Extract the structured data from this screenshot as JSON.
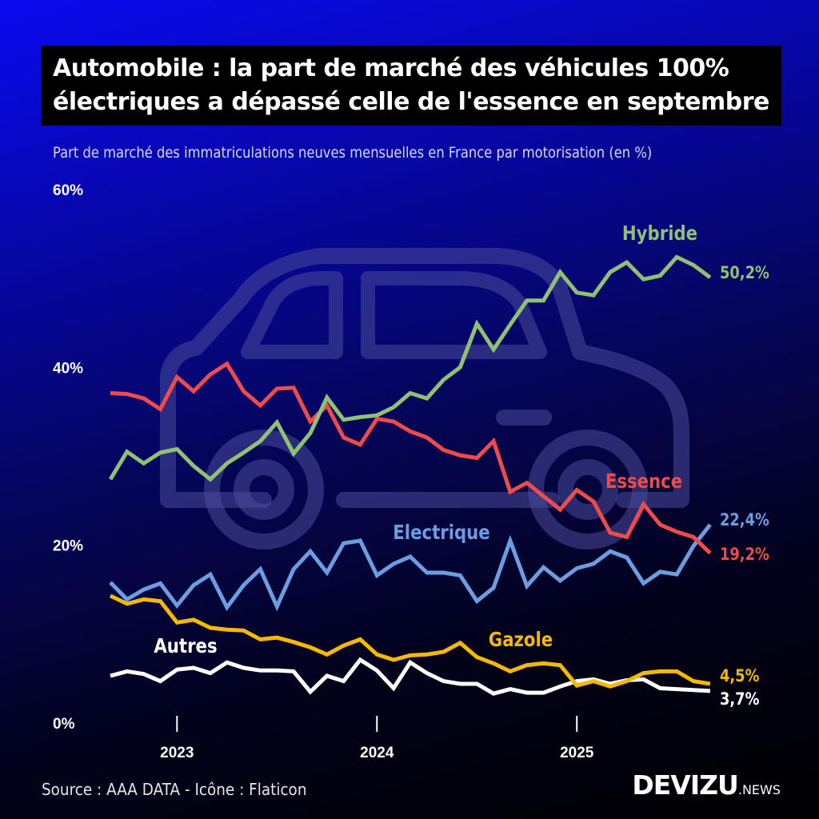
{
  "title": {
    "line1": "Automobile : la part de marché des véhicules 100%",
    "line2": "électriques a dépassé celle de l'essence en septembre"
  },
  "subtitle": "Part de marché des immatriculations neuves mensuelles en France par motorisation (en %)",
  "source": "Source : AAA DATA - Icône : Flaticon",
  "logo": {
    "main": "DEVIZU",
    "suffix": ".NEWS"
  },
  "chart_data": {
    "type": "line",
    "title": "",
    "xlabel": "",
    "ylabel": "",
    "ylim": [
      0,
      60
    ],
    "yticks": [
      "0%",
      "20%",
      "40%",
      "60%"
    ],
    "ytick_values": [
      0,
      20,
      40,
      60
    ],
    "xticks": [
      "2023",
      "2024",
      "2025"
    ],
    "xtick_values": [
      "2023-01",
      "2024-01",
      "2025-01"
    ],
    "grid": false,
    "legend": "inline labels",
    "x": [
      "2022-09",
      "2022-10",
      "2022-11",
      "2022-12",
      "2023-01",
      "2023-02",
      "2023-03",
      "2023-04",
      "2023-05",
      "2023-06",
      "2023-07",
      "2023-08",
      "2023-09",
      "2023-10",
      "2023-11",
      "2023-12",
      "2024-01",
      "2024-02",
      "2024-03",
      "2024-04",
      "2024-05",
      "2024-06",
      "2024-07",
      "2024-08",
      "2024-09",
      "2024-10",
      "2024-11",
      "2024-12",
      "2025-01",
      "2025-02",
      "2025-03",
      "2025-04",
      "2025-05",
      "2025-06",
      "2025-07",
      "2025-08",
      "2025-09"
    ],
    "series": [
      {
        "name": "Hybride",
        "color": "#8fc173",
        "end_label": "50,2%",
        "values": [
          27.5,
          30.6,
          29.3,
          30.5,
          30.9,
          29.0,
          27.5,
          29.3,
          30.5,
          31.8,
          33.9,
          30.4,
          32.7,
          36.7,
          34.2,
          34.5,
          34.7,
          35.6,
          37.2,
          36.6,
          38.7,
          40.1,
          45.0,
          42.1,
          44.9,
          47.6,
          47.6,
          50.8,
          48.5,
          48.2,
          50.8,
          51.9,
          50.0,
          50.4,
          52.5,
          51.6,
          50.2
        ]
      },
      {
        "name": "Essence",
        "color": "#f04b4b",
        "end_label": "19,2%",
        "values": [
          37.2,
          37.1,
          36.6,
          35.4,
          39.0,
          37.4,
          39.3,
          40.5,
          37.4,
          35.8,
          37.7,
          37.8,
          34.0,
          35.8,
          32.2,
          31.4,
          34.3,
          34.0,
          32.9,
          32.2,
          30.8,
          30.2,
          29.9,
          31.8,
          26.1,
          27.1,
          25.6,
          24.1,
          26.3,
          25.0,
          21.5,
          21.0,
          24.7,
          22.4,
          21.6,
          21.0,
          19.2
        ]
      },
      {
        "name": "Electrique",
        "color": "#6b9de3",
        "end_label": "22,4%",
        "values": [
          15.9,
          14.0,
          15.1,
          15.8,
          13.3,
          15.6,
          16.8,
          13.1,
          15.6,
          17.4,
          13.2,
          17.4,
          19.4,
          17.0,
          20.3,
          20.6,
          16.7,
          18.0,
          18.8,
          17.0,
          17.0,
          16.7,
          13.8,
          15.3,
          20.6,
          15.5,
          17.6,
          16.1,
          17.5,
          18.0,
          19.4,
          18.7,
          15.8,
          17.1,
          16.8,
          20.0,
          22.4
        ]
      },
      {
        "name": "Gazole",
        "color": "#f5b900",
        "end_label": "4,5%",
        "values": [
          14.4,
          13.5,
          14.0,
          13.8,
          11.4,
          11.7,
          10.8,
          10.6,
          10.5,
          9.5,
          9.7,
          9.2,
          8.6,
          7.8,
          8.8,
          9.5,
          7.8,
          7.2,
          7.7,
          7.8,
          8.1,
          9.1,
          7.5,
          6.8,
          5.9,
          6.6,
          6.8,
          6.6,
          4.3,
          4.8,
          4.2,
          4.8,
          5.7,
          5.9,
          5.9,
          4.8,
          4.5
        ]
      },
      {
        "name": "Autres",
        "color": "#ffffff",
        "end_label": "3,7%",
        "values": [
          5.4,
          5.9,
          5.6,
          4.8,
          6.1,
          6.3,
          5.7,
          6.9,
          6.3,
          6.0,
          6.0,
          5.9,
          3.6,
          5.4,
          4.8,
          7.2,
          6.0,
          4.0,
          6.9,
          5.7,
          4.8,
          4.5,
          4.5,
          3.4,
          3.9,
          3.5,
          3.5,
          4.2,
          4.8,
          5.0,
          4.5,
          4.9,
          5.0,
          4.0,
          3.9,
          3.8,
          3.7
        ]
      }
    ]
  }
}
